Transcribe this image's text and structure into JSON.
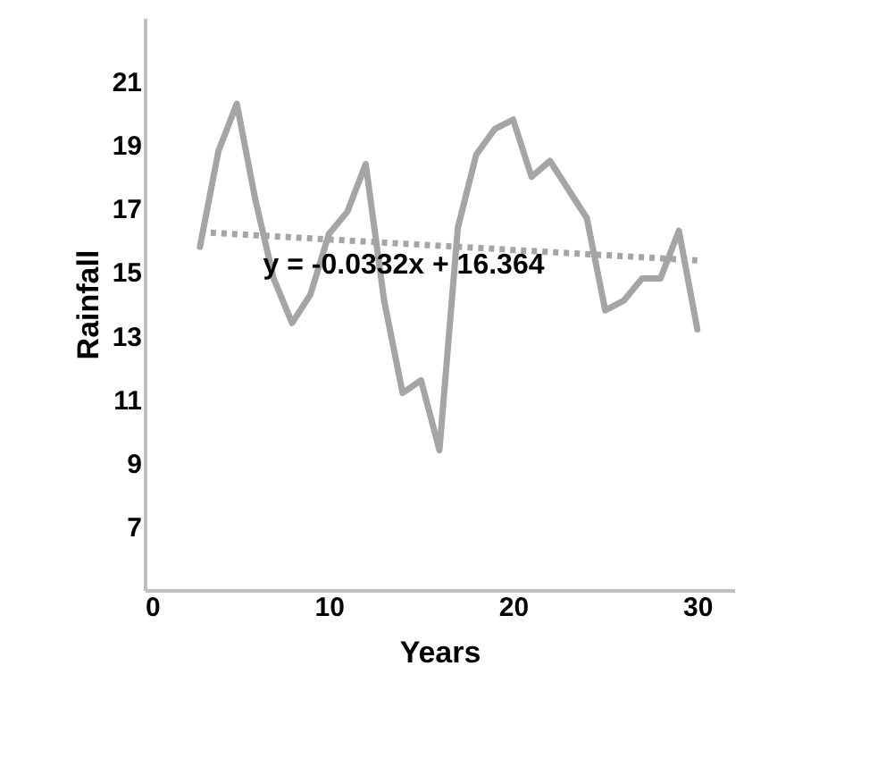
{
  "chart_data": {
    "type": "line",
    "xlabel": "Years",
    "ylabel": "Rainfall",
    "xlim": [
      0,
      32
    ],
    "xticks": [
      0,
      10,
      20,
      30
    ],
    "ylim": [
      5,
      23
    ],
    "yticks": [
      7,
      9,
      11,
      13,
      15,
      17,
      19,
      21
    ],
    "grid": false,
    "marker": "none",
    "series": [
      {
        "color": "#a5a5a5",
        "line_style": "solid",
        "x": [
          3,
          4,
          5,
          6,
          7,
          8,
          9,
          10,
          11,
          12,
          13,
          14,
          15,
          16,
          17,
          18,
          19,
          20,
          21,
          22,
          23,
          24,
          25,
          26,
          27,
          28,
          29,
          30
        ],
        "values": [
          15.8,
          18.8,
          20.3,
          17.3,
          14.8,
          13.4,
          14.3,
          16.2,
          16.9,
          18.4,
          14.1,
          11.2,
          11.6,
          9.4,
          16.4,
          18.7,
          19.5,
          19.8,
          18.0,
          18.5,
          17.6,
          16.7,
          13.8,
          14.1,
          14.8,
          14.8,
          16.3,
          13.2
        ]
      },
      {
        "type": "line",
        "color": "#a5a5a5",
        "line_style": "dotted",
        "x": [
          3,
          30
        ],
        "values": [
          16.26,
          15.37
        ]
      }
    ],
    "annotations": [
      "y = -0.0332x + 16.364"
    ]
  }
}
